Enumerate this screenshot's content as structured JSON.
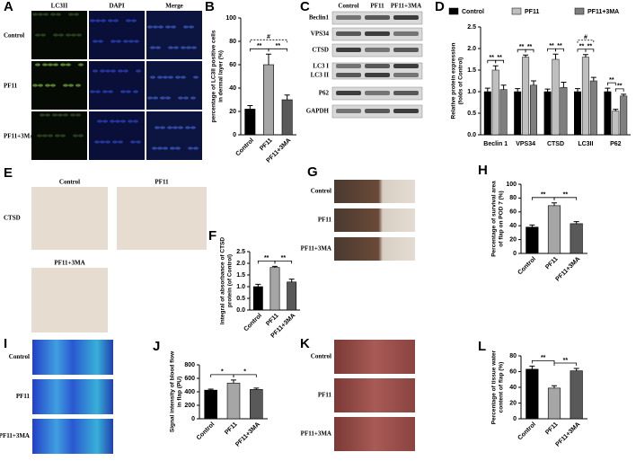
{
  "chart_data": [
    {
      "type": "bar",
      "panel": "B",
      "ylabel": [
        "percentage of LC3II positive cells",
        "in dermal layer (%)"
      ],
      "categories": [
        "Control",
        "PF11",
        "PF11+3MA"
      ],
      "values": [
        22,
        60,
        30
      ],
      "errors": [
        3,
        9,
        4
      ],
      "colors": [
        "#000000",
        "#a6a6a6",
        "#595959"
      ],
      "ylim": [
        0,
        100
      ],
      "yticks": [
        0,
        20,
        40,
        60,
        80,
        100
      ],
      "comparisons": [
        {
          "label": "**",
          "pair": [
            0,
            1
          ]
        },
        {
          "label": "**",
          "pair": [
            1,
            2
          ]
        },
        {
          "label": "#",
          "pair": [
            0,
            2
          ],
          "dashed": true
        }
      ]
    },
    {
      "type": "grouped_bar",
      "panel": "D",
      "ylabel": [
        "Relative protein expression",
        "(folds of Control)"
      ],
      "categories": [
        "Beclin 1",
        "VPS34",
        "CTSD",
        "LC3II",
        "P62"
      ],
      "series": [
        {
          "name": "Control",
          "color": "#000000",
          "values": [
            1,
            1,
            1,
            1,
            1
          ],
          "errors": [
            0.08,
            0.07,
            0.06,
            0.07,
            0.08
          ]
        },
        {
          "name": "PF11",
          "color": "#bfbfbf",
          "values": [
            1.5,
            1.8,
            1.75,
            1.8,
            0.55
          ],
          "errors": [
            0.1,
            0.05,
            0.12,
            0.06,
            0.04
          ]
        },
        {
          "name": "PF11+3MA",
          "color": "#7f7f7f",
          "values": [
            1.05,
            1.15,
            1.1,
            1.25,
            0.9
          ],
          "errors": [
            0.1,
            0.1,
            0.12,
            0.08,
            0.04
          ]
        }
      ],
      "ylim": [
        0,
        2.5
      ],
      "yticks": [
        {
          "value": 0,
          "label": "0.0"
        },
        0.5,
        {
          "value": 1,
          "label": "1.0"
        },
        1.5,
        {
          "value": 2,
          "label": "2.0"
        },
        2.5
      ],
      "comparisons": [
        {
          "label": "**",
          "category": 0,
          "pair": [
            0,
            1
          ]
        },
        {
          "label": "**",
          "category": 0,
          "pair": [
            1,
            2
          ]
        },
        {
          "label": "**",
          "category": 1,
          "pair": [
            0,
            1
          ]
        },
        {
          "label": "**",
          "category": 1,
          "pair": [
            1,
            2
          ]
        },
        {
          "label": "**",
          "category": 2,
          "pair": [
            0,
            1
          ]
        },
        {
          "label": "**",
          "category": 2,
          "pair": [
            1,
            2
          ]
        },
        {
          "label": "**",
          "category": 3,
          "pair": [
            0,
            1
          ]
        },
        {
          "label": "**",
          "category": 3,
          "pair": [
            1,
            2
          ]
        },
        {
          "label": "#",
          "category": 3,
          "pair": [
            0,
            2
          ],
          "dashed": true
        },
        {
          "label": "**",
          "category": 4,
          "pair": [
            0,
            1
          ]
        },
        {
          "label": "**",
          "category": 4,
          "pair": [
            1,
            2
          ]
        }
      ]
    },
    {
      "type": "bar",
      "panel": "F",
      "ylabel": [
        "Integral of absorbance of CTSD",
        "protein (of Control)"
      ],
      "categories": [
        "Control",
        "PF11",
        "PF11+3MA"
      ],
      "values": [
        1.0,
        1.82,
        1.2
      ],
      "errors": [
        0.1,
        0.05,
        0.12
      ],
      "colors": [
        "#000000",
        "#a6a6a6",
        "#595959"
      ],
      "ylim": [
        0,
        2.5
      ],
      "yticks": [
        {
          "value": 0,
          "label": "0.0"
        },
        0.5,
        {
          "value": 1,
          "label": "1.0"
        },
        1.5,
        {
          "value": 2,
          "label": "2.0"
        },
        2.5
      ],
      "comparisons": [
        {
          "label": "**",
          "pair": [
            0,
            1
          ]
        },
        {
          "label": "**",
          "pair": [
            1,
            2
          ]
        }
      ]
    },
    {
      "type": "bar",
      "panel": "H",
      "ylabel": [
        "Percentage of survival area",
        "of flap on POD 7 (%)"
      ],
      "categories": [
        "Control",
        "PF11",
        "PF11+3MA"
      ],
      "values": [
        38,
        69,
        43
      ],
      "errors": [
        3,
        4,
        3
      ],
      "colors": [
        "#000000",
        "#a6a6a6",
        "#595959"
      ],
      "ylim": [
        0,
        100
      ],
      "yticks": [
        0,
        20,
        40,
        60,
        80,
        100
      ],
      "comparisons": [
        {
          "label": "**",
          "pair": [
            0,
            1
          ]
        },
        {
          "label": "**",
          "pair": [
            1,
            2
          ]
        }
      ]
    },
    {
      "type": "bar",
      "panel": "J",
      "ylabel": [
        "Signal intensity of blood flow",
        "in flap (PU)"
      ],
      "categories": [
        "Control",
        "PF11",
        "PF11+3MA"
      ],
      "values": [
        425,
        530,
        435
      ],
      "errors": [
        15,
        45,
        20
      ],
      "colors": [
        "#000000",
        "#a6a6a6",
        "#595959"
      ],
      "ylim": [
        0,
        800
      ],
      "yticks": [
        0,
        200,
        400,
        600,
        800
      ],
      "comparisons": [
        {
          "label": "*",
          "pair": [
            0,
            1
          ]
        },
        {
          "label": "*",
          "pair": [
            1,
            2
          ]
        }
      ]
    },
    {
      "type": "bar",
      "panel": "L",
      "ylabel": [
        "Percentage of tissue water",
        "content of flap (%)"
      ],
      "categories": [
        "Control",
        "PF11",
        "PF11+3MA"
      ],
      "values": [
        63,
        39,
        61
      ],
      "errors": [
        4,
        3,
        3
      ],
      "colors": [
        "#000000",
        "#a6a6a6",
        "#595959"
      ],
      "ylim": [
        0,
        80
      ],
      "yticks": [
        0,
        20,
        40,
        60,
        80
      ],
      "comparisons": [
        {
          "label": "**",
          "pair": [
            0,
            1
          ]
        },
        {
          "label": "**",
          "pair": [
            1,
            2
          ]
        }
      ]
    }
  ],
  "image_panels": [
    {
      "panel": "A",
      "columns": [
        "LC3II",
        "DAPI",
        "Merge"
      ],
      "rows": [
        "Control",
        "PF11",
        "PF11+3MA"
      ]
    },
    {
      "panel": "C",
      "columns": [
        "Control",
        "PF11",
        "PF11+3MA"
      ],
      "rows": [
        "Beclin1",
        "VPS34",
        "CTSD",
        "LC3 I",
        "LC3 II",
        "P62",
        "GAPDH"
      ]
    },
    {
      "panel": "E",
      "stain": "CTSD",
      "images": [
        "Control",
        "PF11",
        "PF11+3MA"
      ]
    },
    {
      "panel": "G",
      "rows": [
        "Control",
        "PF11",
        "PF11+3MA"
      ]
    },
    {
      "panel": "I",
      "rows": [
        "Control",
        "PF11",
        "PF11+3MA"
      ]
    },
    {
      "panel": "K",
      "rows": [
        "Control",
        "PF11",
        "PF11+3MA"
      ]
    }
  ]
}
